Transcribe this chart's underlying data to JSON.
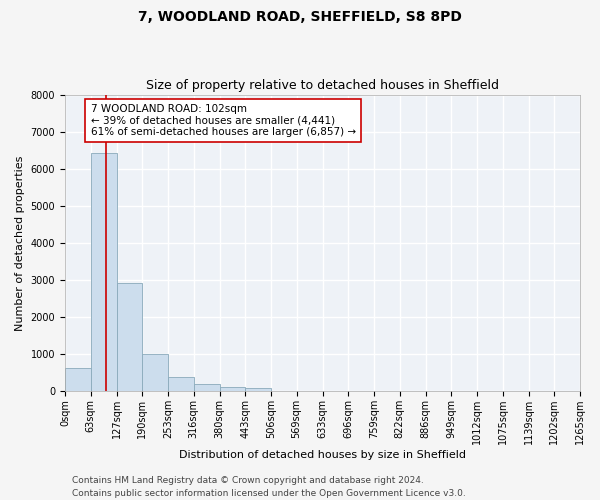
{
  "title1": "7, WOODLAND ROAD, SHEFFIELD, S8 8PD",
  "title2": "Size of property relative to detached houses in Sheffield",
  "xlabel": "Distribution of detached houses by size in Sheffield",
  "ylabel": "Number of detached properties",
  "bar_color": "#ccdded",
  "bar_edge_color": "#8aaabb",
  "vline_color": "#cc0000",
  "vline_x": 102,
  "annotation_line1": "7 WOODLAND ROAD: 102sqm",
  "annotation_line2": "← 39% of detached houses are smaller (4,441)",
  "annotation_line3": "61% of semi-detached houses are larger (6,857) →",
  "annotation_box_color": "#ffffff",
  "annotation_box_edge_color": "#cc0000",
  "bin_edges": [
    0,
    63,
    127,
    190,
    253,
    316,
    380,
    443,
    506,
    569,
    633,
    696,
    759,
    822,
    886,
    949,
    1012,
    1075,
    1139,
    1202,
    1265
  ],
  "bin_counts": [
    620,
    6430,
    2920,
    1010,
    380,
    185,
    120,
    95,
    0,
    0,
    0,
    0,
    0,
    0,
    0,
    0,
    0,
    0,
    0,
    0
  ],
  "xlim": [
    0,
    1265
  ],
  "ylim": [
    0,
    8000
  ],
  "yticks": [
    0,
    1000,
    2000,
    3000,
    4000,
    5000,
    6000,
    7000,
    8000
  ],
  "xtick_labels": [
    "0sqm",
    "63sqm",
    "127sqm",
    "190sqm",
    "253sqm",
    "316sqm",
    "380sqm",
    "443sqm",
    "506sqm",
    "569sqm",
    "633sqm",
    "696sqm",
    "759sqm",
    "822sqm",
    "886sqm",
    "949sqm",
    "1012sqm",
    "1075sqm",
    "1139sqm",
    "1202sqm",
    "1265sqm"
  ],
  "background_color": "#eef2f7",
  "grid_color": "#ffffff",
  "footer1": "Contains HM Land Registry data © Crown copyright and database right 2024.",
  "footer2": "Contains public sector information licensed under the Open Government Licence v3.0.",
  "title1_fontsize": 10,
  "title2_fontsize": 9,
  "axis_label_fontsize": 8,
  "tick_fontsize": 7,
  "annotation_fontsize": 7.5,
  "footer_fontsize": 6.5
}
